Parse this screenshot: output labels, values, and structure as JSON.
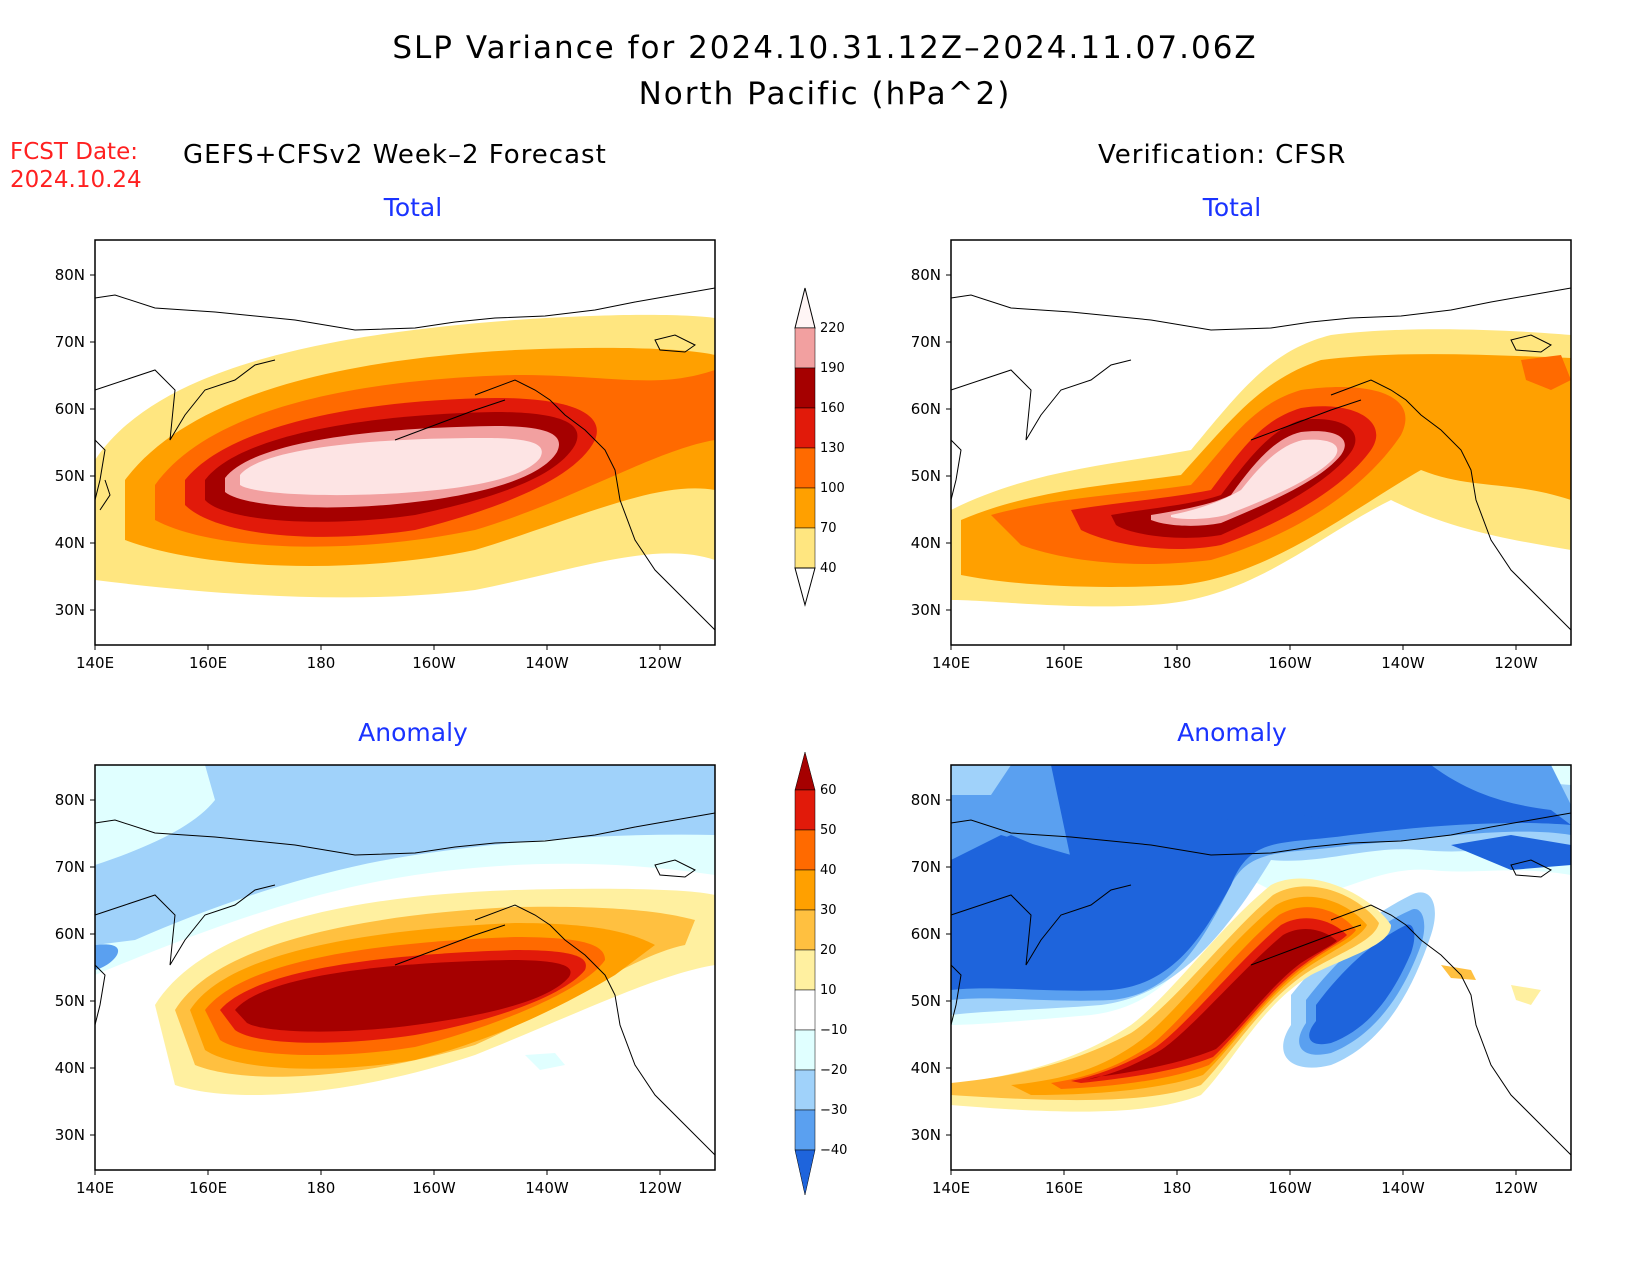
{
  "header": {
    "title_line1": "SLP Variance for 2024.10.31.12Z–2024.11.07.06Z",
    "title_line2": "North Pacific (hPa^2)",
    "fcst_label": "FCST Date:",
    "fcst_date": "2024.10.24",
    "left_subtitle": "GEFS+CFSv2 Week–2 Forecast",
    "right_subtitle": "Verification: CFSR"
  },
  "panels": {
    "top_left_title": "Total",
    "top_right_title": "Total",
    "bottom_left_title": "Anomaly",
    "bottom_right_title": "Anomaly"
  },
  "axes": {
    "lat_ticks": [
      "80N",
      "70N",
      "60N",
      "50N",
      "40N",
      "30N"
    ],
    "lon_ticks": [
      "140E",
      "160E",
      "180",
      "160W",
      "140W",
      "120W"
    ]
  },
  "colorbar_total": {
    "levels": [
      "220",
      "190",
      "160",
      "130",
      "100",
      "70",
      "40"
    ],
    "colors": [
      "#fde4e4",
      "#f2a0a0",
      "#a50000",
      "#e11a0a",
      "#ff6a00",
      "#ffa000",
      "#ffe680"
    ]
  },
  "colorbar_anomaly": {
    "levels": [
      "60",
      "50",
      "40",
      "30",
      "20",
      "10",
      "−10",
      "−20",
      "−30",
      "−40"
    ],
    "colors": [
      "#a50000",
      "#e11a0a",
      "#ff6a00",
      "#ffa000",
      "#ffc040",
      "#fff0a0",
      "#ffffff",
      "#e0ffff",
      "#a0d2fa",
      "#5aa0f0",
      "#1e64dc"
    ]
  }
}
